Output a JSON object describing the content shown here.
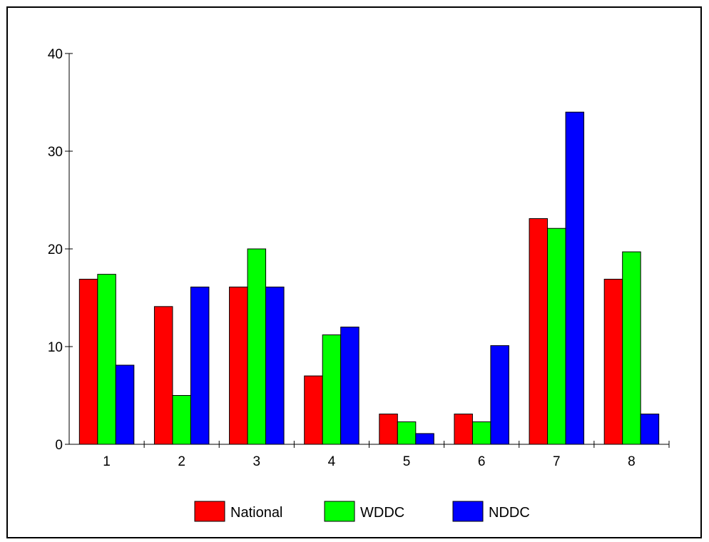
{
  "chart_data": {
    "type": "bar",
    "title": "",
    "xlabel": "",
    "ylabel": "",
    "categories": [
      "1",
      "2",
      "3",
      "4",
      "5",
      "6",
      "7",
      "8"
    ],
    "series": [
      {
        "name": "National",
        "color": "#ff0000",
        "values": [
          16.9,
          14.1,
          16.1,
          7.0,
          3.1,
          3.1,
          23.1,
          16.9
        ]
      },
      {
        "name": "WDDC",
        "color": "#00ff00",
        "values": [
          17.4,
          5.0,
          20.0,
          11.2,
          2.3,
          2.3,
          22.1,
          19.7
        ]
      },
      {
        "name": "NDDC",
        "color": "#0000ff",
        "values": [
          8.1,
          16.1,
          16.1,
          12.0,
          1.1,
          10.1,
          34.0,
          3.1
        ]
      }
    ],
    "ylim": [
      0,
      40
    ],
    "yticks": [
      "0",
      "10",
      "20",
      "30",
      "40"
    ],
    "grid": false,
    "legend_position": "bottom-center"
  }
}
